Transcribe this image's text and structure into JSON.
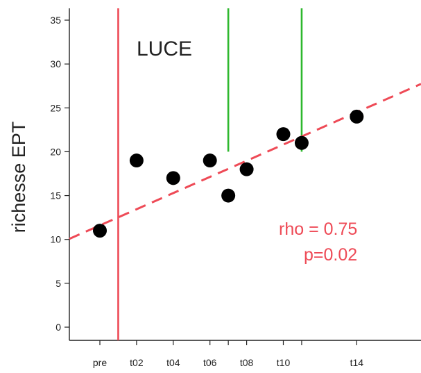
{
  "chart_data": {
    "type": "scatter",
    "ylabel": "richesse EPT",
    "panel_label": "LUCE",
    "ylim": [
      -1.5,
      36
    ],
    "y_ticks": [
      "0",
      "5",
      "10",
      "15",
      "20",
      "25",
      "30",
      "35"
    ],
    "x_tick_labels": [
      "pre",
      "t02",
      "t04",
      "t06",
      "t08",
      "t10",
      "t14"
    ],
    "points": [
      {
        "x": "pre",
        "y": 11
      },
      {
        "x": "t02",
        "y": 19
      },
      {
        "x": "t04",
        "y": 17
      },
      {
        "x": "t06",
        "y": 19
      },
      {
        "x": "t07",
        "y": 15
      },
      {
        "x": "t08",
        "y": 18
      },
      {
        "x": "t10",
        "y": 22
      },
      {
        "x": "t11",
        "y": 21
      },
      {
        "x": "t14",
        "y": 24
      }
    ],
    "trend_line": {
      "style": "dashed",
      "color": "#ee4a56",
      "from": {
        "x": "pre",
        "y": 11.6
      },
      "to": {
        "x": "t14",
        "y": 24.5
      }
    },
    "vertical_markers": [
      {
        "x": "t01",
        "color": "#ee4a56",
        "y_from": -1.5,
        "y_to": 36
      },
      {
        "x": "t07",
        "color": "#2eb82e",
        "y_from": 20,
        "y_to": 36
      },
      {
        "x": "t11",
        "color": "#2eb82e",
        "y_from": 20,
        "y_to": 36
      }
    ],
    "annotations": [
      "rho = 0.75",
      "p=0.02"
    ],
    "grid": false,
    "colors": {
      "points": "#000000",
      "trend": "#ee4a56",
      "event_red": "#ee4a56",
      "event_green": "#2eb82e"
    }
  }
}
